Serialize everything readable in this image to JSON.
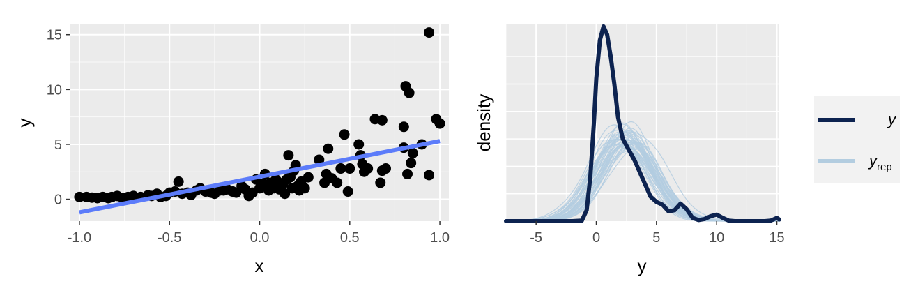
{
  "chart_data": [
    {
      "type": "scatter",
      "xlabel": "x",
      "ylabel": "y",
      "xlim": [
        -1.05,
        1.05
      ],
      "ylim": [
        -2,
        16
      ],
      "x_ticks": [
        "-1.0",
        "-0.5",
        "0.0",
        "0.5",
        "1.0"
      ],
      "y_ticks": [
        "0",
        "5",
        "10",
        "15"
      ],
      "grid": true,
      "colors": {
        "points": "#000000",
        "fit_line": "#5C7CFA",
        "panel": "#EBEBEB"
      },
      "points": [
        [
          -1.0,
          0.2
        ],
        [
          -0.96,
          0.2
        ],
        [
          -0.93,
          0.15
        ],
        [
          -0.9,
          0.1
        ],
        [
          -0.87,
          0.2
        ],
        [
          -0.84,
          0.1
        ],
        [
          -0.82,
          0.2
        ],
        [
          -0.79,
          0.3
        ],
        [
          -0.76,
          0.1
        ],
        [
          -0.73,
          0.2
        ],
        [
          -0.7,
          0.3
        ],
        [
          -0.66,
          0.2
        ],
        [
          -0.62,
          0.35
        ],
        [
          -0.6,
          0.3
        ],
        [
          -0.57,
          0.5
        ],
        [
          -0.55,
          0.2
        ],
        [
          -0.52,
          0.3
        ],
        [
          -0.5,
          0.6
        ],
        [
          -0.47,
          0.7
        ],
        [
          -0.45,
          1.6
        ],
        [
          -0.43,
          0.5
        ],
        [
          -0.4,
          0.6
        ],
        [
          -0.38,
          0.4
        ],
        [
          -0.35,
          0.8
        ],
        [
          -0.33,
          1.0
        ],
        [
          -0.3,
          0.7
        ],
        [
          -0.27,
          0.6
        ],
        [
          -0.25,
          0.5
        ],
        [
          -0.22,
          0.8
        ],
        [
          -0.2,
          0.8
        ],
        [
          -0.18,
          0.9
        ],
        [
          -0.15,
          0.7
        ],
        [
          -0.13,
          0.6
        ],
        [
          -0.1,
          1.2
        ],
        [
          -0.08,
          0.9
        ],
        [
          -0.06,
          0.3
        ],
        [
          -0.04,
          0.6
        ],
        [
          -0.02,
          1.8
        ],
        [
          0.0,
          1.0
        ],
        [
          0.02,
          1.4
        ],
        [
          0.03,
          2.3
        ],
        [
          0.05,
          0.8
        ],
        [
          0.06,
          1.5
        ],
        [
          0.08,
          1.0
        ],
        [
          0.09,
          1.8
        ],
        [
          0.1,
          1.6
        ],
        [
          0.11,
          0.9
        ],
        [
          0.12,
          1.2
        ],
        [
          0.13,
          1.4
        ],
        [
          0.14,
          0.5
        ],
        [
          0.15,
          1.8
        ],
        [
          0.16,
          4.0
        ],
        [
          0.17,
          2.0
        ],
        [
          0.18,
          1.0
        ],
        [
          0.19,
          2.6
        ],
        [
          0.2,
          3.1
        ],
        [
          0.21,
          1.2
        ],
        [
          0.22,
          0.8
        ],
        [
          0.23,
          1.6
        ],
        [
          0.25,
          1.0
        ],
        [
          0.27,
          2.0
        ],
        [
          0.33,
          3.6
        ],
        [
          0.36,
          1.5
        ],
        [
          0.37,
          2.3
        ],
        [
          0.38,
          4.6
        ],
        [
          0.4,
          1.9
        ],
        [
          0.43,
          1.5
        ],
        [
          0.45,
          2.8
        ],
        [
          0.47,
          5.9
        ],
        [
          0.49,
          0.7
        ],
        [
          0.5,
          2.8
        ],
        [
          0.55,
          5.0
        ],
        [
          0.56,
          4.0
        ],
        [
          0.57,
          3.2
        ],
        [
          0.58,
          2.5
        ],
        [
          0.6,
          2.8
        ],
        [
          0.64,
          7.3
        ],
        [
          0.67,
          1.5
        ],
        [
          0.68,
          7.2
        ],
        [
          0.68,
          2.6
        ],
        [
          0.7,
          2.8
        ],
        [
          0.8,
          4.7
        ],
        [
          0.8,
          6.6
        ],
        [
          0.81,
          10.3
        ],
        [
          0.82,
          2.3
        ],
        [
          0.83,
          9.7
        ],
        [
          0.84,
          3.3
        ],
        [
          0.85,
          4.2
        ],
        [
          0.9,
          5.0
        ],
        [
          0.94,
          15.2
        ],
        [
          0.94,
          2.2
        ],
        [
          0.98,
          7.3
        ],
        [
          1.0,
          6.9
        ]
      ],
      "fit_line": [
        [
          -1.0,
          -1.2
        ],
        [
          1.0,
          5.3
        ]
      ]
    },
    {
      "type": "line",
      "xlabel": "y",
      "ylabel": "density",
      "xlim": [
        -7.5,
        15.2
      ],
      "ylim": [
        0,
        0.36
      ],
      "x_ticks": [
        "-5",
        "0",
        "5",
        "10",
        "15"
      ],
      "grid": true,
      "legend": "right",
      "colors": {
        "y": "#0D2350",
        "yrep": "#B3CDE0",
        "panel": "#EBEBEB"
      },
      "series": [
        {
          "name": "y",
          "x": [
            -7.5,
            -2.0,
            -1.2,
            -0.8,
            -0.5,
            -0.2,
            0.0,
            0.3,
            0.6,
            0.9,
            1.2,
            1.5,
            1.8,
            2.2,
            2.7,
            3.2,
            3.8,
            4.5,
            5.0,
            5.5,
            6.0,
            6.5,
            7.0,
            7.5,
            8.0,
            8.5,
            9.0,
            9.5,
            10.0,
            10.5,
            11.0,
            11.5,
            12.0,
            13.0,
            14.0,
            14.5,
            15.0,
            15.2
          ],
          "y": [
            0.0,
            0.0,
            0.001,
            0.02,
            0.08,
            0.18,
            0.26,
            0.33,
            0.355,
            0.34,
            0.3,
            0.25,
            0.19,
            0.15,
            0.13,
            0.11,
            0.08,
            0.045,
            0.035,
            0.03,
            0.018,
            0.02,
            0.032,
            0.022,
            0.006,
            0.002,
            0.004,
            0.009,
            0.012,
            0.006,
            0.001,
            0.0,
            0.0,
            0.0,
            0.0,
            0.001,
            0.006,
            0.003
          ]
        },
        {
          "name": "yrep",
          "mean": 2.5,
          "sd_range": [
            2.0,
            2.6
          ],
          "peak_range": [
            0.13,
            0.175
          ]
        }
      ]
    }
  ],
  "legend": {
    "y_label": "y",
    "yrep_label": "y",
    "yrep_subscript": "rep"
  }
}
